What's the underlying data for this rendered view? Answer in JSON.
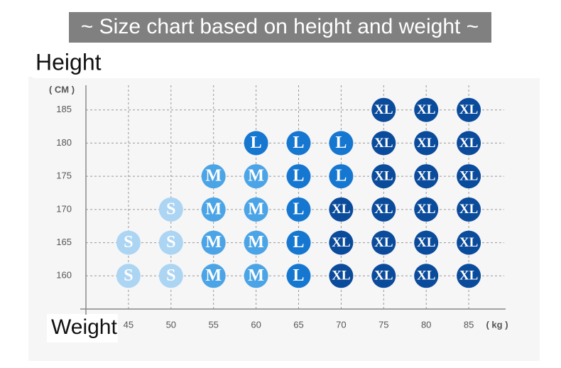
{
  "chart_data": {
    "type": "size-grid",
    "title": "~ Size chart based on height and weight ~",
    "y_label": "Height",
    "y_unit": "( CM )",
    "x_label": "Weight",
    "x_unit": "( kg )",
    "xlim": [
      40,
      90
    ],
    "xticks": [
      45,
      50,
      55,
      60,
      65,
      70,
      75,
      80,
      85
    ],
    "ylim": [
      155,
      190
    ],
    "yticks": [
      160,
      165,
      170,
      175,
      180,
      185
    ],
    "grid": true,
    "size_colors": {
      "S": "#acd5f3",
      "M": "#4ba4e6",
      "L": "#1677d1",
      "XL": "#0b4b9b"
    },
    "cells": [
      [
        "S",
        "S",
        "M",
        "M",
        "L",
        "XL",
        "XL",
        "XL",
        "XL"
      ],
      [
        "S",
        "S",
        "M",
        "M",
        "L",
        "XL",
        "XL",
        "XL",
        "XL"
      ],
      [
        null,
        "S",
        "M",
        "M",
        "L",
        "XL",
        "XL",
        "XL",
        "XL"
      ],
      [
        null,
        null,
        "M",
        "M",
        "L",
        "L",
        "XL",
        "XL",
        "XL"
      ],
      [
        null,
        null,
        null,
        "L",
        "L",
        "L",
        "XL",
        "XL",
        "XL"
      ],
      [
        null,
        null,
        null,
        null,
        null,
        null,
        "XL",
        "XL",
        "XL"
      ]
    ]
  }
}
